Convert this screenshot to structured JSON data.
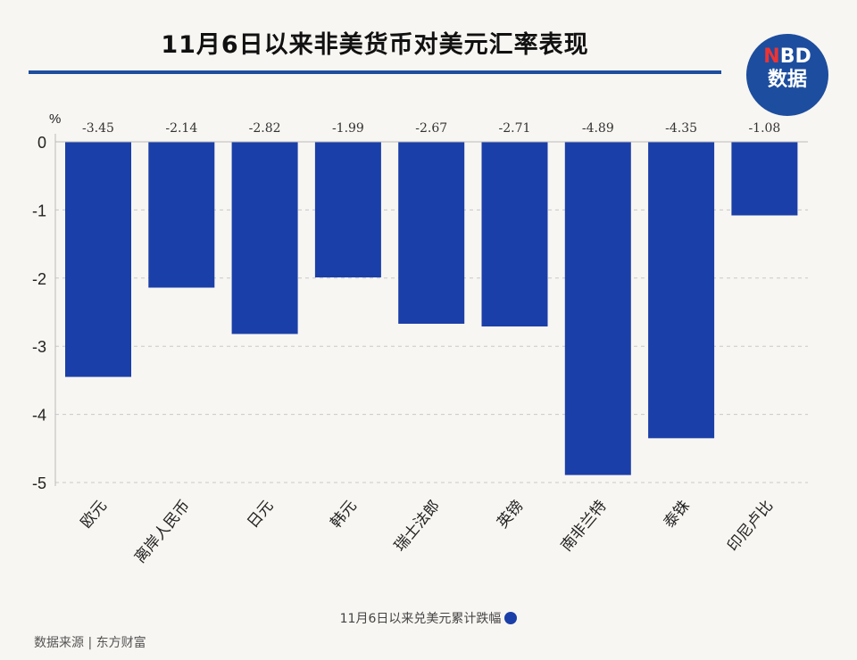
{
  "title": "11月6日以来非美货币对美元汇率表现",
  "logo": {
    "line1_accent": "N",
    "line1_rest": "BD",
    "line2": "数据"
  },
  "legend": "11月6日以来兑美元累计跌幅",
  "source": "数据来源 | 东方财富",
  "chart_data": {
    "type": "bar",
    "title": "11月6日以来非美货币对美元汇率表现",
    "ylabel": "%",
    "categories": [
      "欧元",
      "离岸人民币",
      "日元",
      "韩元",
      "瑞士法郎",
      "英镑",
      "南非兰特",
      "泰铢",
      "印尼卢比"
    ],
    "values": [
      -3.45,
      -2.14,
      -2.82,
      -1.99,
      -2.67,
      -2.71,
      -4.89,
      -4.35,
      -1.08
    ],
    "labels": [
      "-3.45",
      "-2.14",
      "-2.82",
      "-1.99",
      "-2.67",
      "-2.71",
      "-4.89",
      "-4.35",
      "-1.08"
    ],
    "yticks": [
      "0",
      "-1",
      "-2",
      "-3",
      "-4",
      "-5"
    ],
    "ylim": [
      -5,
      0
    ],
    "series_name": "11月6日以来兑美元累计跌幅",
    "color": "#1b3fa8",
    "grid": true,
    "legend_position": "bottom"
  }
}
